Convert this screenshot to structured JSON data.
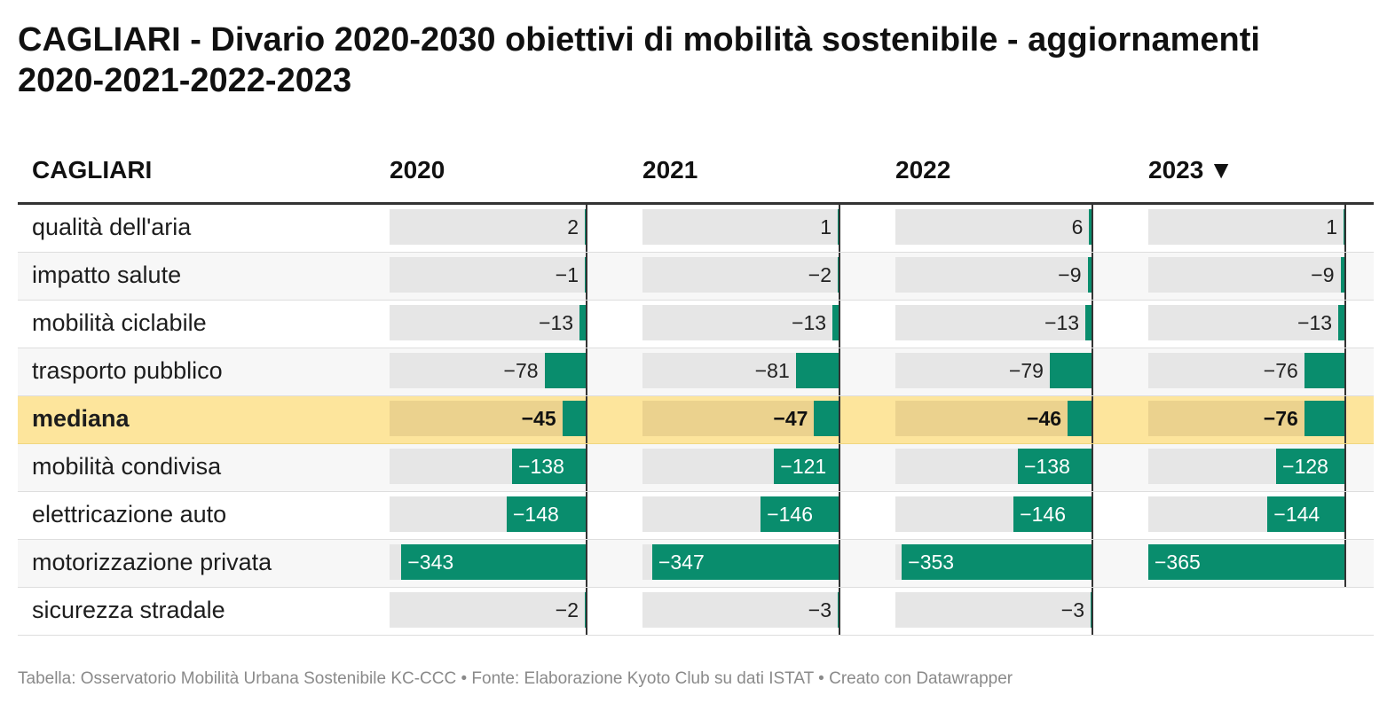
{
  "title": "CAGLIARI - Divario 2020-2030 obiettivi di mobilità sostenibile - aggiornamenti 2020-2021-2022-2023",
  "header": {
    "first_col": "CAGLIARI",
    "sort_icon": "sort-descending-icon",
    "sort_glyph": "▼"
  },
  "footer": {
    "text": "Tabella: Osservatorio Mobilità Urbana Sostenibile KC-CCC • Fonte: Elaborazione Kyoto Club su dati ISTAT • Creato con Datawrapper"
  },
  "colors": {
    "bar": "#098d6d",
    "cell_background": "#e6e6e6",
    "highlight_row": "#fde59c"
  },
  "chart_data": {
    "type": "table",
    "title": "CAGLIARI - Divario 2020-2030 obiettivi di mobilità sostenibile - aggiornamenti 2020-2021-2022-2023",
    "columns": [
      "2020",
      "2021",
      "2022",
      "2023"
    ],
    "sorted_column": "2023",
    "highlighted_row": "mediana",
    "rows": [
      {
        "label": "qualità dell'aria",
        "values": [
          2,
          1,
          6,
          1
        ]
      },
      {
        "label": "impatto salute",
        "values": [
          -1,
          -2,
          -9,
          -9
        ]
      },
      {
        "label": "mobilità ciclabile",
        "values": [
          -13,
          -13,
          -13,
          -13
        ]
      },
      {
        "label": "trasporto pubblico",
        "values": [
          -78,
          -81,
          -79,
          -76
        ]
      },
      {
        "label": "mediana",
        "values": [
          -45,
          -47,
          -46,
          -76
        ]
      },
      {
        "label": "mobilità condivisa",
        "values": [
          -138,
          -121,
          -138,
          -128
        ]
      },
      {
        "label": "elettricazione auto",
        "values": [
          -148,
          -146,
          -146,
          -144
        ]
      },
      {
        "label": "motorizzazione privata",
        "values": [
          -343,
          -347,
          -353,
          -365
        ]
      },
      {
        "label": "sicurezza stradale",
        "values": [
          -2,
          -3,
          -3,
          null
        ]
      }
    ]
  }
}
